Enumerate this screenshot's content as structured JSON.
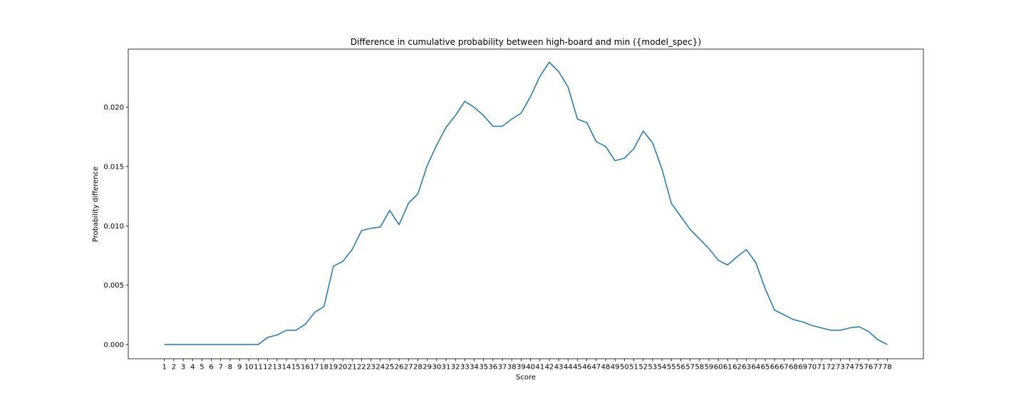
{
  "chart_data": {
    "type": "line",
    "title": "Difference in cumulative probability between high-board and min ({model_spec})",
    "xlabel": "Score",
    "ylabel": "Probability difference",
    "ylim": [
      -0.0012,
      0.0249
    ],
    "grid": false,
    "y_ticks": [
      "0.000",
      "0.005",
      "0.010",
      "0.015",
      "0.020"
    ],
    "y_tick_values": [
      0,
      0.005,
      0.01,
      0.015,
      0.02
    ],
    "x": [
      1,
      2,
      3,
      4,
      5,
      6,
      7,
      8,
      9,
      10,
      11,
      12,
      13,
      14,
      15,
      16,
      17,
      18,
      19,
      20,
      21,
      22,
      23,
      24,
      25,
      26,
      27,
      28,
      29,
      30,
      31,
      32,
      33,
      34,
      35,
      36,
      37,
      38,
      39,
      40,
      41,
      42,
      43,
      44,
      45,
      46,
      47,
      48,
      49,
      50,
      51,
      52,
      53,
      54,
      55,
      56,
      57,
      58,
      59,
      60,
      61,
      62,
      63,
      64,
      65,
      66,
      67,
      68,
      69,
      70,
      71,
      72,
      73,
      74,
      75,
      76,
      77,
      78
    ],
    "series": [
      {
        "values": [
          0,
          0,
          0,
          0,
          0,
          0,
          0,
          0,
          0,
          0,
          0,
          0.0006,
          0.0008,
          0.0012,
          0.0012,
          0.0017,
          0.0027,
          0.0032,
          0.0066,
          0.007,
          0.008,
          0.0096,
          0.0098,
          0.0099,
          0.0113,
          0.0101,
          0.0119,
          0.0127,
          0.0151,
          0.0168,
          0.0183,
          0.0193,
          0.0205,
          0.02,
          0.0193,
          0.0184,
          0.0184,
          0.019,
          0.0195,
          0.0209,
          0.0226,
          0.0238,
          0.023,
          0.0217,
          0.019,
          0.0187,
          0.0171,
          0.0167,
          0.0155,
          0.0157,
          0.0165,
          0.018,
          0.017,
          0.0148,
          0.0119,
          0.0108,
          0.0097,
          0.0089,
          0.0081,
          0.0071,
          0.0067,
          0.0074,
          0.008,
          0.0069,
          0.0047,
          0.0029,
          0.0025,
          0.0021,
          0.0019,
          0.0016,
          0.0014,
          0.0012,
          0.0012,
          0.0014,
          0.0015,
          0.0011,
          0.0004,
          0
        ]
      }
    ]
  }
}
